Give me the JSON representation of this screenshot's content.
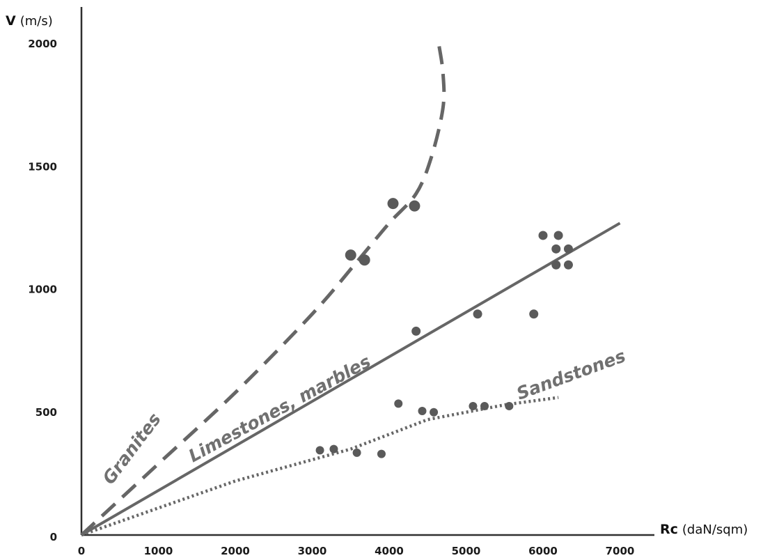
{
  "chart_data": {
    "type": "scatter",
    "title": "",
    "xlabel": {
      "bold": "Rc",
      "unit": "(daN/sqm)"
    },
    "ylabel": {
      "bold": "V",
      "unit": "(m/s)"
    },
    "xlim": [
      0,
      7500
    ],
    "ylim": [
      0,
      2000
    ],
    "x_ticks": [
      0,
      1000,
      2000,
      3000,
      4000,
      5000,
      6000,
      7000
    ],
    "y_ticks": [
      0,
      500,
      1000,
      1500,
      2000
    ],
    "grid": false,
    "colors": {
      "axis": "#2f2f2f",
      "points": "#5a5a5a",
      "lines": "#666666",
      "labels": "#707070"
    },
    "series": [
      {
        "name": "Granites",
        "line_style": "dashed",
        "points": [
          [
            3500,
            1140
          ],
          [
            3680,
            1120
          ],
          [
            4050,
            1350
          ],
          [
            4330,
            1340
          ]
        ],
        "trend": [
          [
            0,
            0
          ],
          [
            1000,
            290
          ],
          [
            2000,
            580
          ],
          [
            3000,
            900
          ],
          [
            3600,
            1120
          ],
          [
            4000,
            1270
          ],
          [
            4350,
            1390
          ],
          [
            4550,
            1540
          ],
          [
            4700,
            1740
          ],
          [
            4700,
            1880
          ],
          [
            4650,
            1990
          ]
        ]
      },
      {
        "name": "Limestones, marbles",
        "line_style": "solid",
        "points": [
          [
            4350,
            830
          ],
          [
            5150,
            900
          ],
          [
            5880,
            900
          ],
          [
            6000,
            1220
          ],
          [
            6200,
            1220
          ],
          [
            6170,
            1165
          ],
          [
            6330,
            1165
          ],
          [
            6170,
            1100
          ],
          [
            6330,
            1100
          ]
        ],
        "trend": [
          [
            0,
            0
          ],
          [
            7000,
            1270
          ]
        ]
      },
      {
        "name": "Sandstones",
        "line_style": "dotted",
        "points": [
          [
            3100,
            345
          ],
          [
            3280,
            350
          ],
          [
            3580,
            335
          ],
          [
            3900,
            330
          ],
          [
            4120,
            535
          ],
          [
            4430,
            505
          ],
          [
            4580,
            500
          ],
          [
            5090,
            525
          ],
          [
            5240,
            525
          ],
          [
            5560,
            525
          ]
        ],
        "trend": [
          [
            0,
            0
          ],
          [
            2000,
            220
          ],
          [
            3500,
            350
          ],
          [
            4500,
            470
          ],
          [
            5500,
            530
          ],
          [
            6200,
            560
          ]
        ]
      }
    ]
  }
}
